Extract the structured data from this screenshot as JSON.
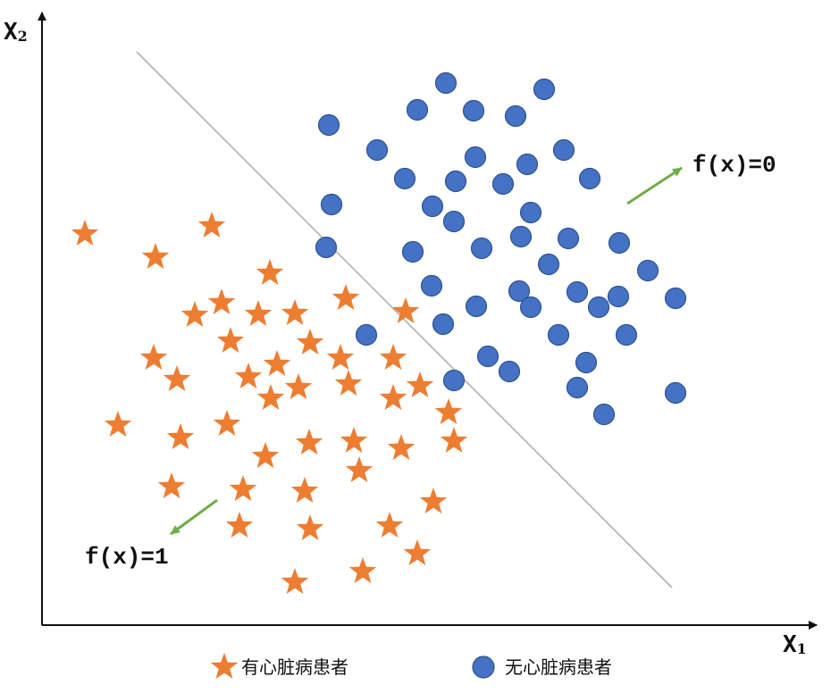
{
  "axes": {
    "x_label": "X",
    "x_subscript": "1",
    "y_label": "X",
    "y_subscript": "2"
  },
  "annotations": {
    "upper": "f(x)=0",
    "lower": "f(x)=1",
    "arrow_color": "#70ad47"
  },
  "legend": {
    "star_label": "有心脏病患者",
    "circle_label": "无心脏病患者"
  },
  "colors": {
    "star": "#ed7d31",
    "circle": "#4472c4",
    "circle_stroke": "#2f528f",
    "boundary": "#b0b0b0"
  },
  "chart_data": {
    "type": "scatter",
    "series": [
      {
        "name": "有心脏病患者",
        "marker": "star",
        "points": [
          [
            95,
            262
          ],
          [
            237,
            253
          ],
          [
            174,
            288
          ],
          [
            302,
            306
          ],
          [
            387,
            334
          ],
          [
            248,
            339
          ],
          [
            218,
            353
          ],
          [
            289,
            352
          ],
          [
            330,
            351
          ],
          [
            454,
            349
          ],
          [
            258,
            382
          ],
          [
            347,
            384
          ],
          [
            172,
            401
          ],
          [
            381,
            401
          ],
          [
            440,
            401
          ],
          [
            198,
            425
          ],
          [
            278,
            422
          ],
          [
            310,
            408
          ],
          [
            334,
            434
          ],
          [
            390,
            430
          ],
          [
            470,
            432
          ],
          [
            303,
            446
          ],
          [
            440,
            446
          ],
          [
            502,
            462
          ],
          [
            132,
            476
          ],
          [
            254,
            475
          ],
          [
            202,
            490
          ],
          [
            346,
            496
          ],
          [
            396,
            494
          ],
          [
            449,
            502
          ],
          [
            508,
            494
          ],
          [
            297,
            511
          ],
          [
            402,
            527
          ],
          [
            192,
            545
          ],
          [
            272,
            548
          ],
          [
            341,
            550
          ],
          [
            485,
            562
          ],
          [
            268,
            589
          ],
          [
            347,
            592
          ],
          [
            436,
            589
          ],
          [
            467,
            620
          ],
          [
            406,
            640
          ],
          [
            330,
            652
          ]
        ]
      },
      {
        "name": "无心脏病患者",
        "marker": "circle",
        "points": [
          [
            499,
            93
          ],
          [
            609,
            100
          ],
          [
            467,
            123
          ],
          [
            530,
            124
          ],
          [
            577,
            130
          ],
          [
            368,
            140
          ],
          [
            422,
            168
          ],
          [
            631,
            168
          ],
          [
            532,
            176
          ],
          [
            590,
            184
          ],
          [
            453,
            200
          ],
          [
            510,
            203
          ],
          [
            563,
            206
          ],
          [
            660,
            200
          ],
          [
            371,
            229
          ],
          [
            484,
            231
          ],
          [
            594,
            238
          ],
          [
            508,
            248
          ],
          [
            365,
            277
          ],
          [
            462,
            282
          ],
          [
            539,
            278
          ],
          [
            583,
            265
          ],
          [
            636,
            267
          ],
          [
            693,
            272
          ],
          [
            614,
            296
          ],
          [
            725,
            303
          ],
          [
            483,
            320
          ],
          [
            581,
            326
          ],
          [
            646,
            327
          ],
          [
            692,
            332
          ],
          [
            756,
            334
          ],
          [
            533,
            343
          ],
          [
            594,
            344
          ],
          [
            670,
            344
          ],
          [
            496,
            363
          ],
          [
            410,
            375
          ],
          [
            625,
            375
          ],
          [
            701,
            375
          ],
          [
            546,
            399
          ],
          [
            656,
            406
          ],
          [
            570,
            416
          ],
          [
            508,
            426
          ],
          [
            646,
            434
          ],
          [
            756,
            440
          ],
          [
            676,
            464
          ]
        ]
      }
    ],
    "decision_boundary": {
      "from": [
        153,
        58
      ],
      "to": [
        752,
        658
      ]
    }
  }
}
